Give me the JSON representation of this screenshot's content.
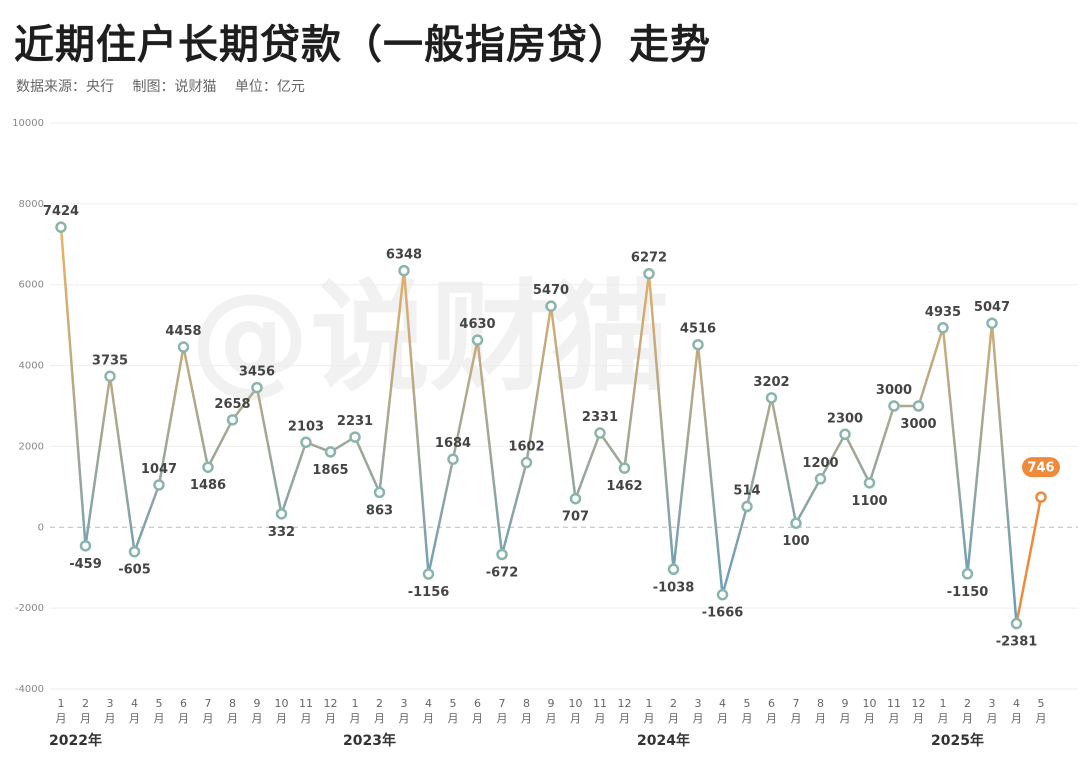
{
  "header": {
    "title": "近期住户长期贷款（一般指房贷）走势",
    "source": "数据来源：央行",
    "author": "制图：说财猫",
    "unit": "单位：亿元"
  },
  "watermark": "@说财猫",
  "colors": {
    "line_low": "#5b9fc4",
    "line_high": "#f0b060",
    "marker": "#8ab5ad",
    "highlight": "#ef8a3a"
  },
  "chart_data": {
    "type": "line",
    "title": "近期住户长期贷款（一般指房贷）走势",
    "ylabel": "",
    "xlabel": "",
    "ylim": [
      -4000,
      10000
    ],
    "yticks": [
      -4000,
      -2000,
      0,
      2000,
      4000,
      6000,
      8000,
      10000
    ],
    "grid": true,
    "years": [
      {
        "label": "2022年",
        "start_index": 0
      },
      {
        "label": "2023年",
        "start_index": 12
      },
      {
        "label": "2024年",
        "start_index": 24
      },
      {
        "label": "2025年",
        "start_index": 36
      }
    ],
    "month_labels": [
      "1",
      "2",
      "3",
      "4",
      "5",
      "6",
      "7",
      "8",
      "9",
      "10",
      "11",
      "12",
      "1",
      "2",
      "3",
      "4",
      "5",
      "6",
      "7",
      "8",
      "9",
      "10",
      "11",
      "12",
      "1",
      "2",
      "3",
      "4",
      "5",
      "6",
      "7",
      "8",
      "9",
      "10",
      "11",
      "12",
      "1",
      "2",
      "3",
      "4",
      "5"
    ],
    "month_suffix": "月",
    "values": [
      7424,
      -459,
      3735,
      -605,
      1047,
      4458,
      1486,
      2658,
      3456,
      332,
      2103,
      1865,
      2231,
      863,
      6348,
      -1156,
      1684,
      4630,
      -672,
      1602,
      5470,
      707,
      2331,
      1462,
      6272,
      -1038,
      4516,
      -1666,
      514,
      3202,
      100,
      1200,
      2300,
      1100,
      3000,
      3000,
      4935,
      -1150,
      5047,
      -2381,
      746
    ],
    "highlight_index": 40
  }
}
